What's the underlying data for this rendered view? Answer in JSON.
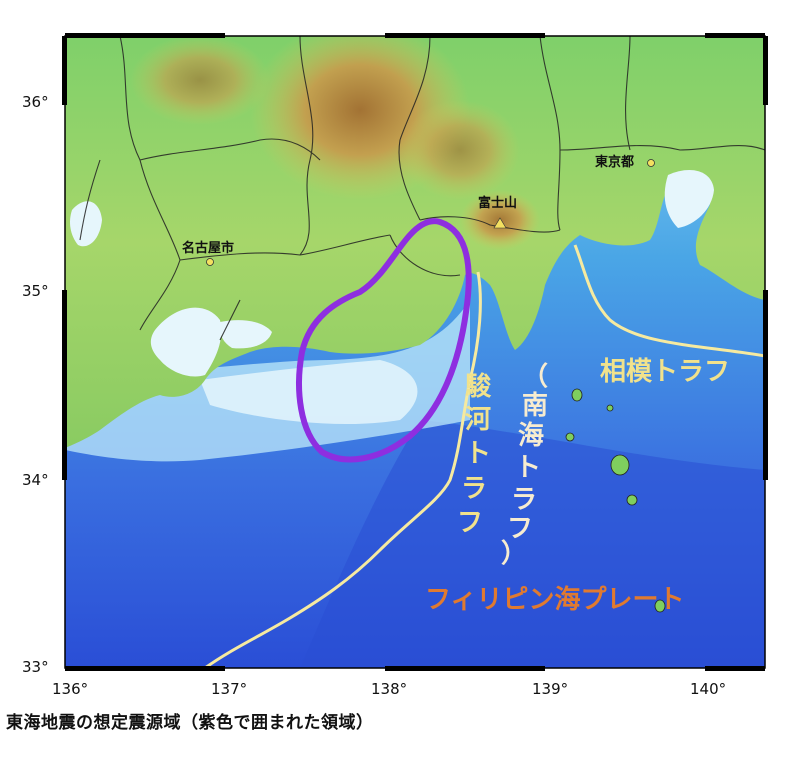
{
  "caption": "東海地震の想定震源域（紫色で囲まれた領域）",
  "axes": {
    "x_ticks": [
      "136°",
      "137°",
      "138°",
      "139°",
      "140°"
    ],
    "y_ticks": [
      "36°",
      "35°",
      "34°",
      "33°"
    ]
  },
  "places": {
    "nagoya": "名古屋市",
    "tokyo": "東京都",
    "fuji": "富士山"
  },
  "troughs": {
    "sagami": "相模トラフ",
    "suruga_lines": [
      "駿",
      "河",
      "ト",
      "ラ",
      "フ"
    ],
    "nankai_lines": [
      "（",
      "南",
      "海",
      "ト",
      "ラ",
      "フ",
      "）"
    ],
    "plate": "フィリピン海プレート"
  },
  "colors": {
    "source_region_outline": "#8e2ee0",
    "trough_line": "#f6eaa0",
    "sagami_label": "#f1e28c",
    "suruga_label": "#f1e28c",
    "nankai_label": "#f7ecd0",
    "plate_label": "#e07a30",
    "land": "#8fd26a",
    "deep_sea": "#2a54d8"
  }
}
